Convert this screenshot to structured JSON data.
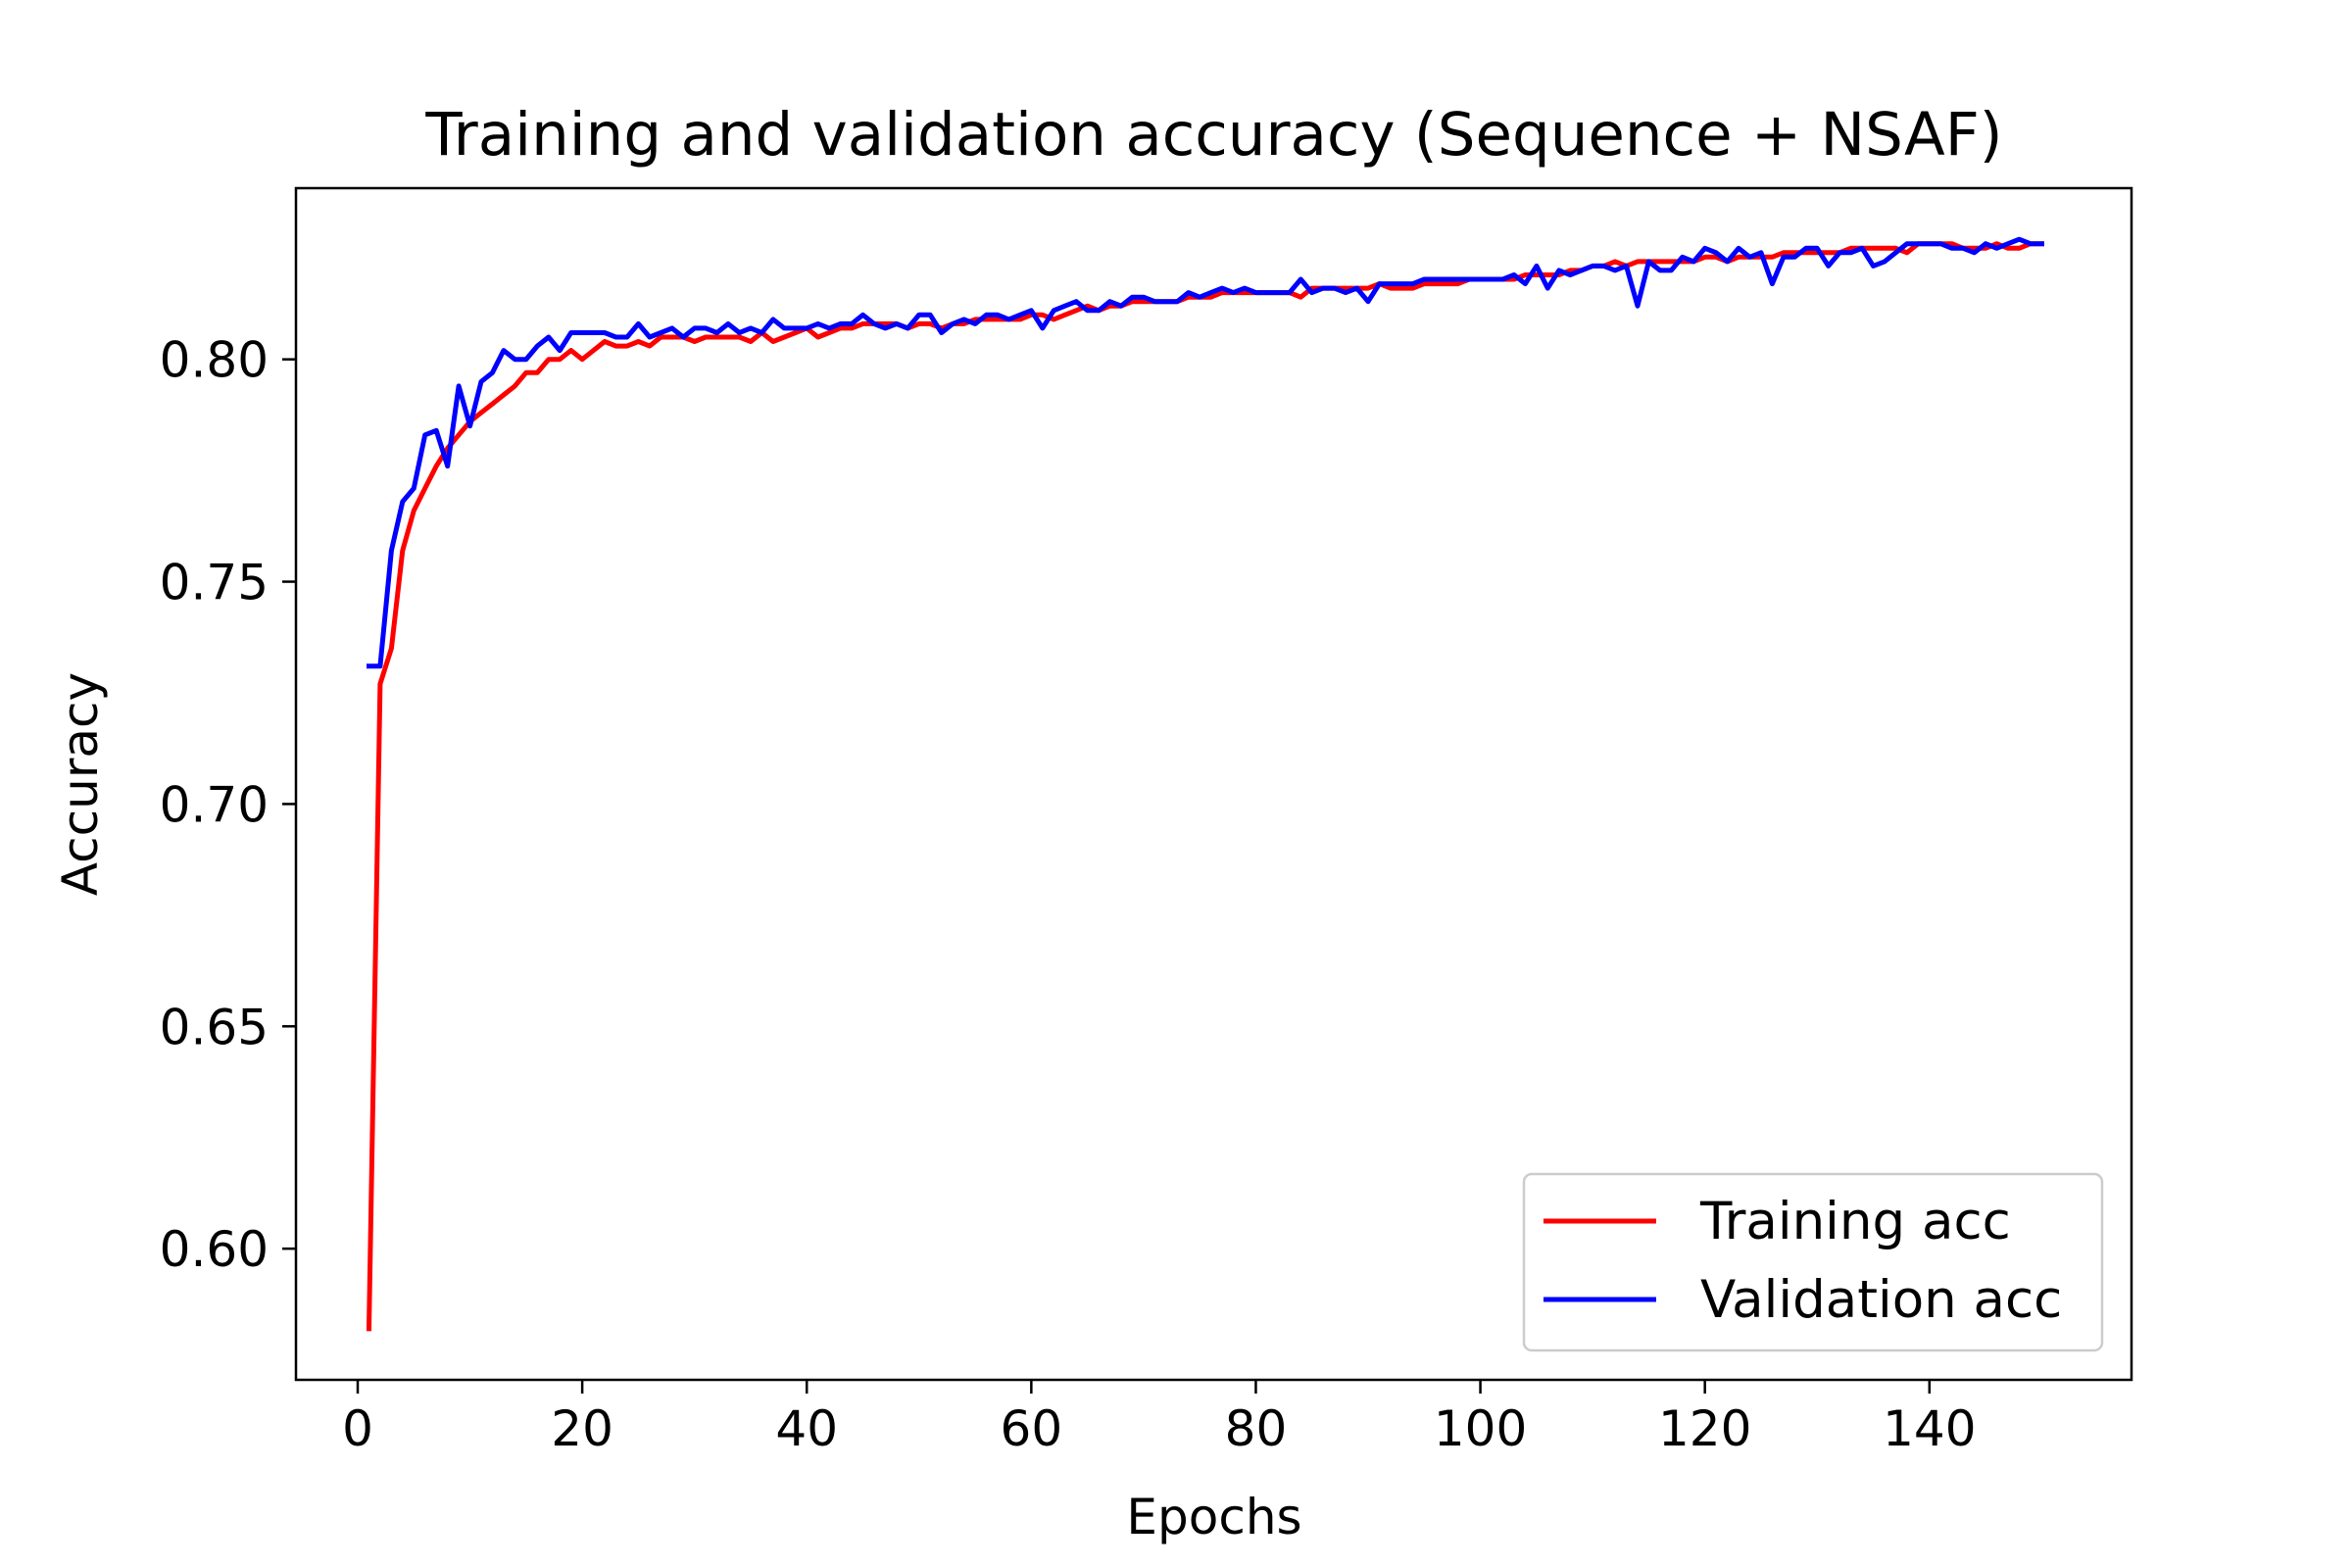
{
  "chart_data": {
    "type": "line",
    "title": "Training and validation accuracy (Sequence + NSAF)",
    "xlabel": "Epochs",
    "ylabel": "Accuracy",
    "xlim": [
      -5.5,
      158
    ],
    "ylim": [
      0.5705,
      0.8385
    ],
    "xticks": [
      0,
      20,
      40,
      60,
      80,
      100,
      120,
      140
    ],
    "yticks": [
      0.6,
      0.65,
      0.7,
      0.75,
      0.8
    ],
    "ytick_labels": [
      "0.60",
      "0.65",
      "0.70",
      "0.75",
      "0.80"
    ],
    "grid": false,
    "legend_position": "lower-right",
    "series": [
      {
        "name": "Training acc",
        "color": "#ff0000",
        "x": [
          1,
          2,
          3,
          4,
          5,
          6,
          7,
          8,
          9,
          10,
          11,
          12,
          13,
          14,
          15,
          16,
          17,
          18,
          19,
          20,
          21,
          22,
          23,
          24,
          25,
          26,
          27,
          28,
          29,
          30,
          31,
          32,
          33,
          34,
          35,
          36,
          37,
          38,
          39,
          40,
          41,
          42,
          43,
          44,
          45,
          46,
          47,
          48,
          49,
          50,
          51,
          52,
          53,
          54,
          55,
          56,
          57,
          58,
          59,
          60,
          61,
          62,
          63,
          64,
          65,
          66,
          67,
          68,
          69,
          70,
          71,
          72,
          73,
          74,
          75,
          76,
          77,
          78,
          79,
          80,
          81,
          82,
          83,
          84,
          85,
          86,
          87,
          88,
          89,
          90,
          91,
          92,
          93,
          94,
          95,
          96,
          97,
          98,
          99,
          100,
          101,
          102,
          103,
          104,
          105,
          106,
          107,
          108,
          109,
          110,
          111,
          112,
          113,
          114,
          115,
          116,
          117,
          118,
          119,
          120,
          121,
          122,
          123,
          124,
          125,
          126,
          127,
          128,
          129,
          130,
          131,
          132,
          133,
          134,
          135,
          136,
          137,
          138,
          139,
          140,
          141,
          142,
          143,
          144,
          145,
          146,
          147,
          148,
          149,
          150
        ],
        "y": [
          0.582,
          0.727,
          0.735,
          0.757,
          0.766,
          0.771,
          0.776,
          0.78,
          0.783,
          0.786,
          0.788,
          0.79,
          0.792,
          0.794,
          0.797,
          0.797,
          0.8,
          0.8,
          0.802,
          0.8,
          0.802,
          0.804,
          0.803,
          0.803,
          0.804,
          0.803,
          0.805,
          0.805,
          0.805,
          0.804,
          0.805,
          0.805,
          0.805,
          0.805,
          0.804,
          0.806,
          0.804,
          0.805,
          0.806,
          0.807,
          0.805,
          0.806,
          0.807,
          0.807,
          0.808,
          0.808,
          0.808,
          0.808,
          0.807,
          0.808,
          0.808,
          0.807,
          0.808,
          0.808,
          0.809,
          0.809,
          0.809,
          0.809,
          0.809,
          0.81,
          0.81,
          0.809,
          0.81,
          0.811,
          0.812,
          0.811,
          0.812,
          0.812,
          0.813,
          0.813,
          0.813,
          0.813,
          0.813,
          0.814,
          0.814,
          0.814,
          0.815,
          0.815,
          0.815,
          0.815,
          0.815,
          0.815,
          0.815,
          0.814,
          0.816,
          0.816,
          0.816,
          0.816,
          0.816,
          0.816,
          0.817,
          0.816,
          0.816,
          0.816,
          0.817,
          0.817,
          0.817,
          0.817,
          0.818,
          0.818,
          0.818,
          0.818,
          0.818,
          0.819,
          0.819,
          0.819,
          0.819,
          0.82,
          0.82,
          0.821,
          0.821,
          0.822,
          0.821,
          0.822,
          0.822,
          0.822,
          0.822,
          0.822,
          0.822,
          0.823,
          0.823,
          0.822,
          0.823,
          0.823,
          0.823,
          0.823,
          0.824,
          0.824,
          0.824,
          0.824,
          0.824,
          0.824,
          0.825,
          0.825,
          0.825,
          0.825,
          0.825,
          0.824,
          0.826,
          0.826,
          0.826,
          0.826,
          0.825,
          0.825,
          0.825,
          0.826,
          0.825,
          0.825,
          0.826,
          0.826
        ]
      },
      {
        "name": "Validation acc",
        "color": "#0000ff",
        "x": [
          1,
          2,
          3,
          4,
          5,
          6,
          7,
          8,
          9,
          10,
          11,
          12,
          13,
          14,
          15,
          16,
          17,
          18,
          19,
          20,
          21,
          22,
          23,
          24,
          25,
          26,
          27,
          28,
          29,
          30,
          31,
          32,
          33,
          34,
          35,
          36,
          37,
          38,
          39,
          40,
          41,
          42,
          43,
          44,
          45,
          46,
          47,
          48,
          49,
          50,
          51,
          52,
          53,
          54,
          55,
          56,
          57,
          58,
          59,
          60,
          61,
          62,
          63,
          64,
          65,
          66,
          67,
          68,
          69,
          70,
          71,
          72,
          73,
          74,
          75,
          76,
          77,
          78,
          79,
          80,
          81,
          82,
          83,
          84,
          85,
          86,
          87,
          88,
          89,
          90,
          91,
          92,
          93,
          94,
          95,
          96,
          97,
          98,
          99,
          100,
          101,
          102,
          103,
          104,
          105,
          106,
          107,
          108,
          109,
          110,
          111,
          112,
          113,
          114,
          115,
          116,
          117,
          118,
          119,
          120,
          121,
          122,
          123,
          124,
          125,
          126,
          127,
          128,
          129,
          130,
          131,
          132,
          133,
          134,
          135,
          136,
          137,
          138,
          139,
          140,
          141,
          142,
          143,
          144,
          145,
          146,
          147,
          148,
          149,
          150
        ],
        "y": [
          0.731,
          0.731,
          0.757,
          0.768,
          0.771,
          0.783,
          0.784,
          0.776,
          0.794,
          0.785,
          0.795,
          0.797,
          0.802,
          0.8,
          0.8,
          0.803,
          0.805,
          0.802,
          0.806,
          0.806,
          0.806,
          0.806,
          0.805,
          0.805,
          0.808,
          0.805,
          0.806,
          0.807,
          0.805,
          0.807,
          0.807,
          0.806,
          0.808,
          0.806,
          0.807,
          0.806,
          0.809,
          0.807,
          0.807,
          0.807,
          0.808,
          0.807,
          0.808,
          0.808,
          0.81,
          0.808,
          0.807,
          0.808,
          0.807,
          0.81,
          0.81,
          0.806,
          0.808,
          0.809,
          0.808,
          0.81,
          0.81,
          0.809,
          0.81,
          0.811,
          0.807,
          0.811,
          0.812,
          0.813,
          0.811,
          0.811,
          0.813,
          0.812,
          0.814,
          0.814,
          0.813,
          0.813,
          0.813,
          0.815,
          0.814,
          0.815,
          0.816,
          0.815,
          0.816,
          0.815,
          0.815,
          0.815,
          0.815,
          0.818,
          0.815,
          0.816,
          0.816,
          0.815,
          0.816,
          0.813,
          0.817,
          0.817,
          0.817,
          0.817,
          0.818,
          0.818,
          0.818,
          0.818,
          0.818,
          0.818,
          0.818,
          0.818,
          0.819,
          0.817,
          0.821,
          0.816,
          0.82,
          0.819,
          0.82,
          0.821,
          0.821,
          0.82,
          0.821,
          0.812,
          0.822,
          0.82,
          0.82,
          0.823,
          0.822,
          0.825,
          0.824,
          0.822,
          0.825,
          0.823,
          0.824,
          0.817,
          0.823,
          0.823,
          0.825,
          0.825,
          0.821,
          0.824,
          0.824,
          0.825,
          0.821,
          0.822,
          0.824,
          0.826,
          0.826,
          0.826,
          0.826,
          0.825,
          0.825,
          0.824,
          0.826,
          0.825,
          0.826,
          0.827,
          0.826,
          0.826
        ]
      }
    ]
  }
}
